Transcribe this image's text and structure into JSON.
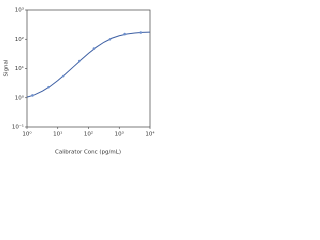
{
  "chart_data": {
    "type": "scatter",
    "x_label": "Calibrator Conc (pg/mL)",
    "y_label": "Signal",
    "log_x": true,
    "log_y": true,
    "xlim": [
      1,
      10000
    ],
    "ylim": [
      0.1,
      1000
    ],
    "xticks": [
      {
        "value": 1,
        "label": "10⁰"
      },
      {
        "value": 10,
        "label": "10¹"
      },
      {
        "value": 100,
        "label": "10²"
      },
      {
        "value": 1000,
        "label": "10³"
      },
      {
        "value": 10000,
        "label": "10⁴"
      }
    ],
    "yticks": [
      {
        "value": 0.1,
        "label": "10⁻¹"
      },
      {
        "value": 1,
        "label": "10⁰"
      },
      {
        "value": 10,
        "label": "10¹"
      },
      {
        "value": 100,
        "label": "10²"
      },
      {
        "value": 1000,
        "label": "10³"
      }
    ],
    "series": [
      {
        "kind": "points",
        "color": "#6d8fcc",
        "x": [
          1.5,
          5,
          15,
          50,
          150,
          500,
          1500,
          5000
        ],
        "values": [
          1.2,
          2.3,
          5.5,
          18,
          48,
          100,
          150,
          170
        ]
      },
      {
        "kind": "curve",
        "color": "#3d5fa3",
        "x": [
          1,
          1.78,
          3.16,
          5.62,
          10,
          17.8,
          31.6,
          56.2,
          100,
          178,
          316,
          562,
          1000,
          1778,
          3162,
          5623,
          10000
        ],
        "values": [
          1.05,
          1.26,
          1.68,
          2.43,
          3.84,
          6.46,
          11.2,
          19.3,
          32.8,
          52.9,
          78.9,
          107,
          132,
          151,
          163,
          171,
          175
        ]
      }
    ]
  }
}
